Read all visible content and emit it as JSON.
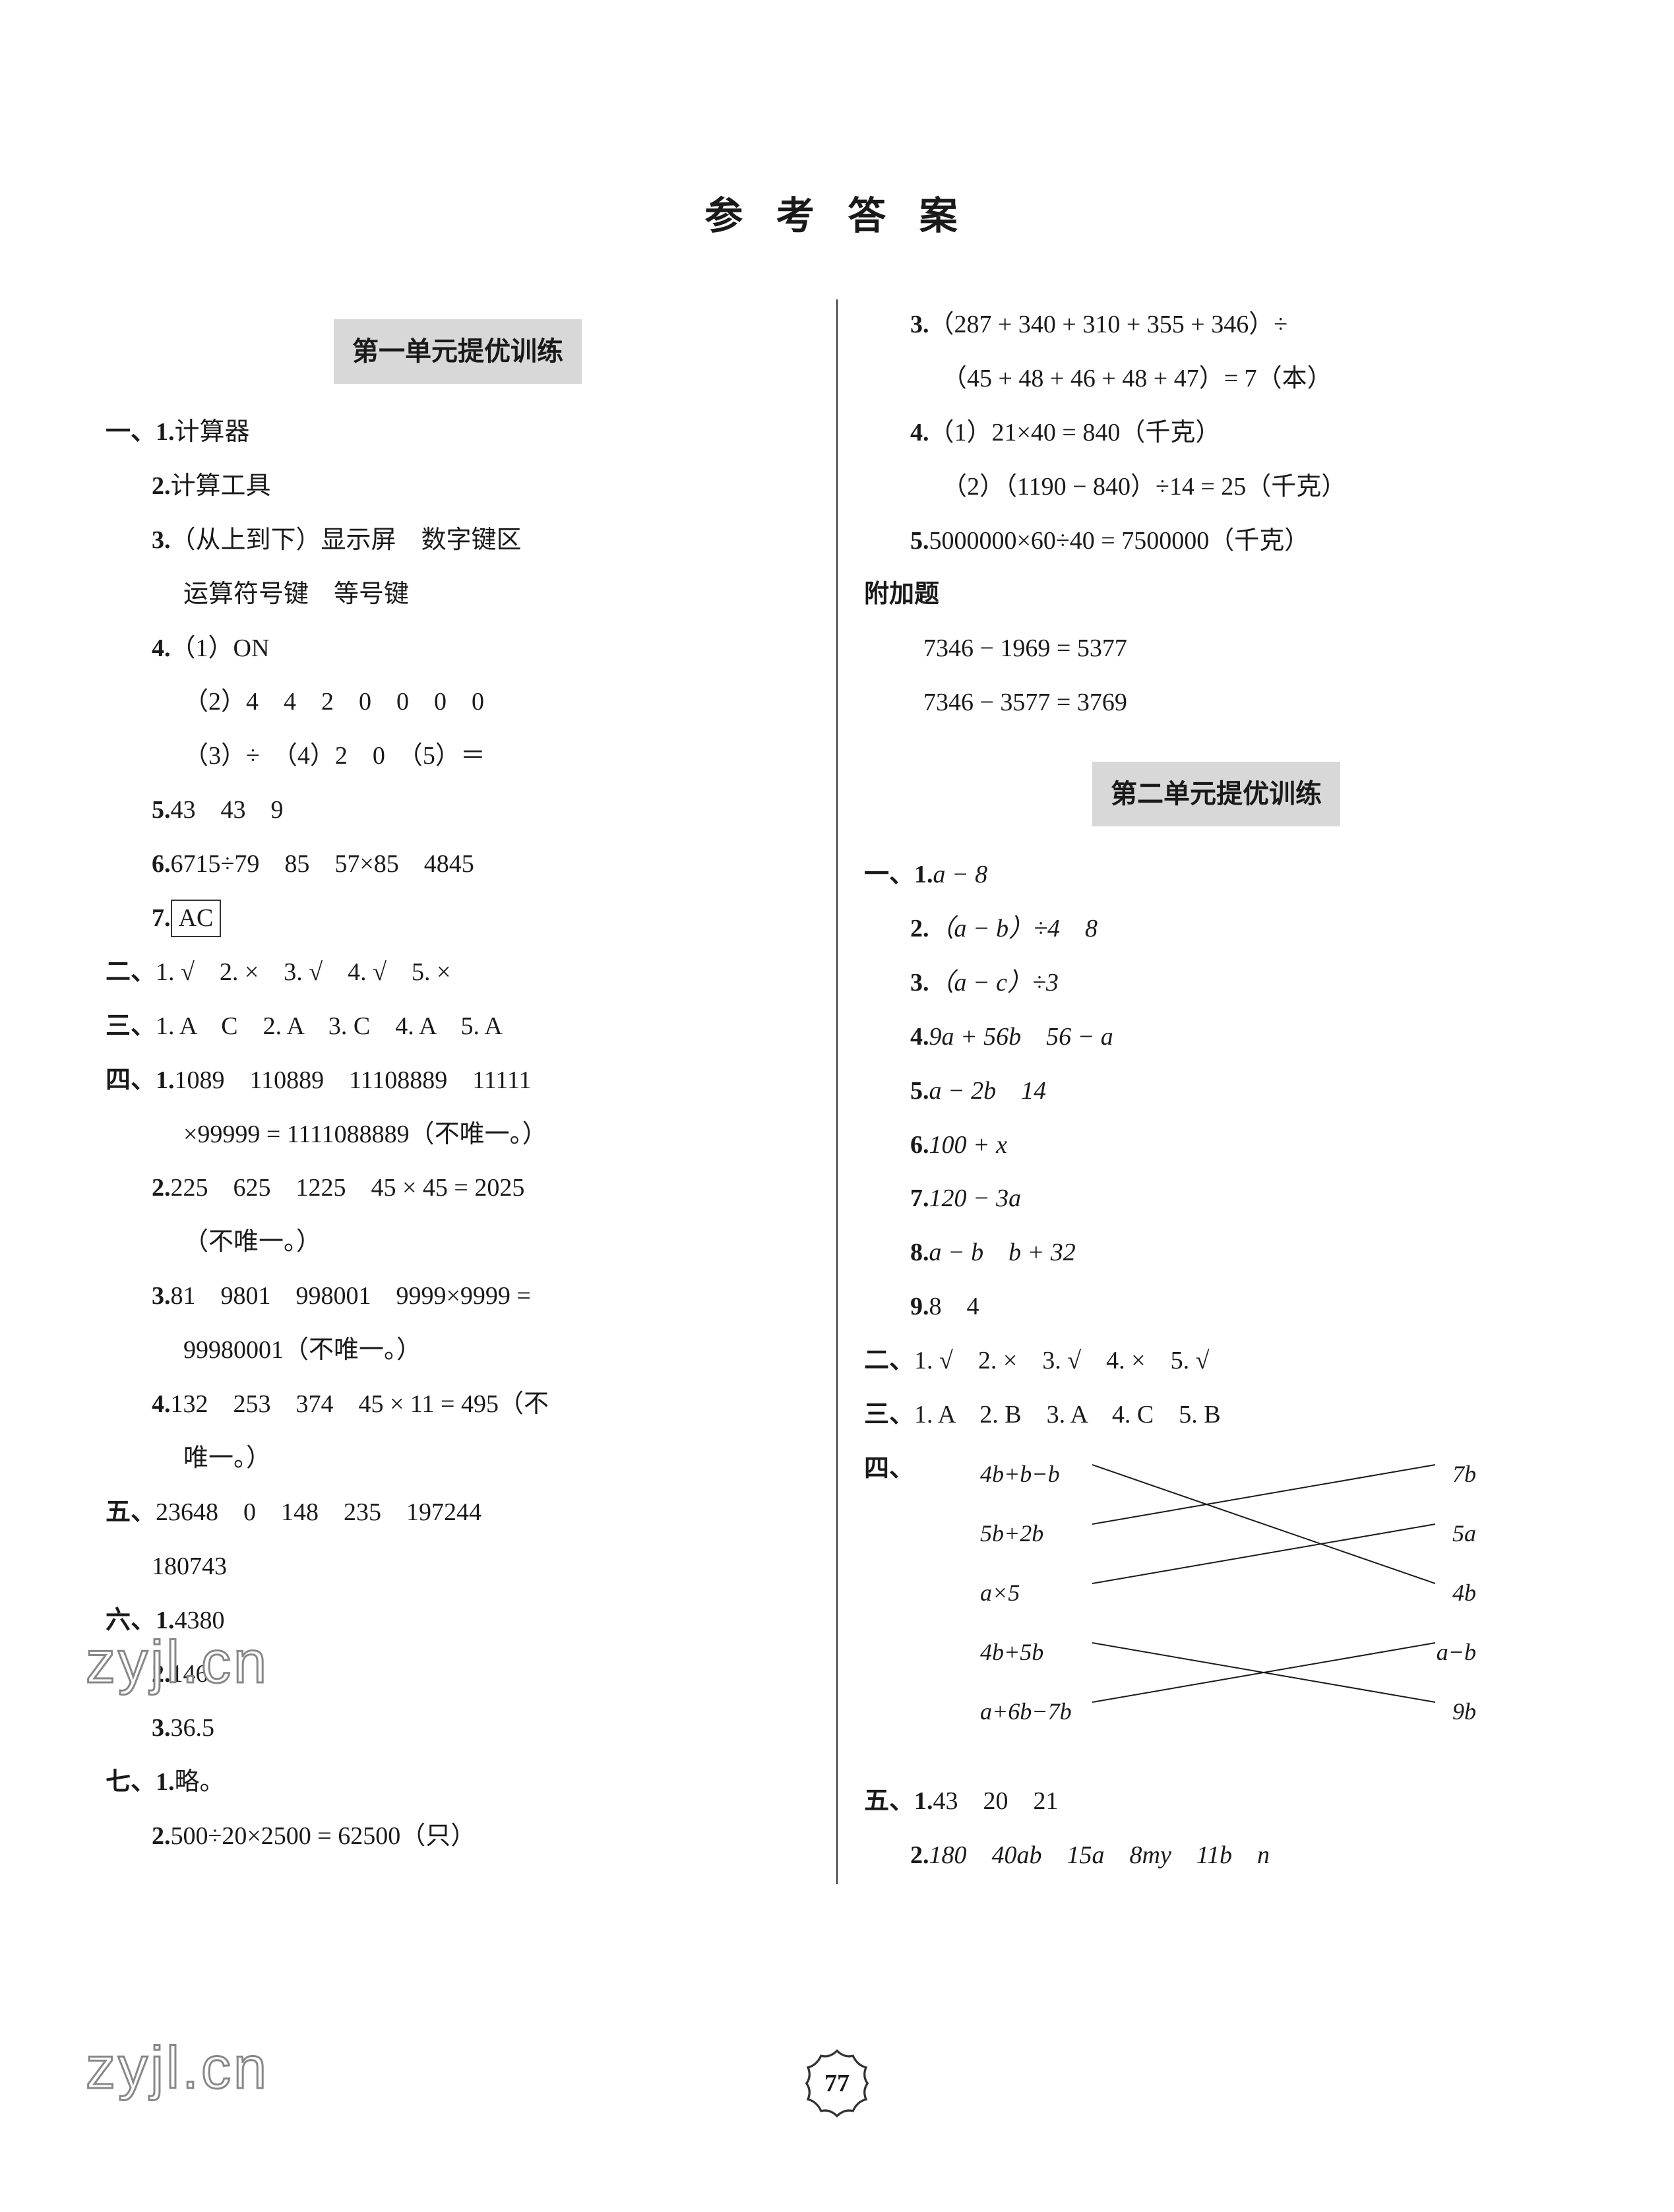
{
  "title": "参 考 答 案",
  "page_number": "77",
  "watermark": "zyjl.cn",
  "colors": {
    "text": "#1a1a1a",
    "section_bg": "#d8d8d8",
    "divider": "#333333",
    "watermark_stroke": "#888888",
    "background": "#ffffff"
  },
  "sections": {
    "unit1": {
      "header": "第一单元提优训练",
      "q1": {
        "label": "一、1.",
        "i1": "计算器",
        "i2_lbl": "2.",
        "i2": "计算工具",
        "i3_lbl": "3.",
        "i3": "（从上到下）显示屏　数字键区",
        "i3b": "运算符号键　等号键",
        "i4_lbl": "4.",
        "i4": "（1）ON",
        "i4b": "（2）4　4　2　0　0　0　0",
        "i4c": "（3）÷　（4）2　0　（5）＝",
        "i5_lbl": "5.",
        "i5": "43　43　9",
        "i6_lbl": "6.",
        "i6": "6715÷79　85　57×85　4845",
        "i7_lbl": "7.",
        "i7": "AC"
      },
      "q2": {
        "label": "二、",
        "text": "1. √　2. ×　3. √　4. √　5. ×"
      },
      "q3": {
        "label": "三、",
        "text": "1. A　C　2. A　3. C　4. A　5. A"
      },
      "q4": {
        "label": "四、1.",
        "i1": "1089　110889　11108889　11111",
        "i1b": "×99999 = 1111088889（不唯一。）",
        "i2_lbl": "2.",
        "i2": "225　625　1225　45 × 45 = 2025",
        "i2b": "（不唯一。）",
        "i3_lbl": "3.",
        "i3": "81　9801　998001　9999×9999 =",
        "i3b": "99980001（不唯一。）",
        "i4_lbl": "4.",
        "i4": "132　253　374　45 × 11 = 495（不",
        "i4b": "唯一。）"
      },
      "q5": {
        "label": "五、",
        "line1": "23648　0　148　235　197244",
        "line2": "180743"
      },
      "q6": {
        "label": "六、1.",
        "i1": "4380",
        "i2_lbl": "2.",
        "i2": "146",
        "i3_lbl": "3.",
        "i3": "36.5"
      },
      "q7": {
        "label": "七、1.",
        "i1": "略。",
        "i2_lbl": "2.",
        "i2": "500÷20×2500 = 62500（只）",
        "i3_lbl": "3.",
        "i3": "（287 + 340 + 310 + 355 + 346）÷",
        "i3b": "（45 + 48 + 46 + 48 + 47）= 7（本）",
        "i4_lbl": "4.",
        "i4": "（1）21×40 = 840（千克）",
        "i4b": "（2）（1190 − 840）÷14 = 25（千克）",
        "i5_lbl": "5.",
        "i5": "5000000×60÷40 = 7500000（千克）"
      },
      "extra": {
        "label": "附加题",
        "l1": "7346 − 1969 = 5377",
        "l2": "7346 − 3577 = 3769"
      }
    },
    "unit2": {
      "header": "第二单元提优训练",
      "q1": {
        "label": "一、1.",
        "i1": "a − 8",
        "i2_lbl": "2.",
        "i2": "（a − b）÷4　8",
        "i3_lbl": "3.",
        "i3": "（a − c）÷3",
        "i4_lbl": "4.",
        "i4": "9a + 56b　56 − a",
        "i5_lbl": "5.",
        "i5": "a − 2b　14",
        "i6_lbl": "6.",
        "i6": "100 + x",
        "i7_lbl": "7.",
        "i7": "120 − 3a",
        "i8_lbl": "8.",
        "i8": "a − b　b + 32",
        "i9_lbl": "9.",
        "i9": "8　4"
      },
      "q2": {
        "label": "二、",
        "text": "1. √　2. ×　3. √　4. ×　5. √"
      },
      "q3": {
        "label": "三、",
        "text": "1. A　2. B　3. A　4. C　5. B"
      },
      "q4": {
        "label": "四、",
        "left": [
          "4b+b−b",
          "5b+2b",
          "a×5",
          "4b+5b",
          "a+6b−7b"
        ],
        "right": [
          "7b",
          "5a",
          "4b",
          "a−b",
          "9b"
        ],
        "edges": [
          [
            0,
            2
          ],
          [
            1,
            0
          ],
          [
            2,
            1
          ],
          [
            3,
            4
          ],
          [
            4,
            3
          ]
        ]
      },
      "q5": {
        "label": "五、1.",
        "i1": "43　20　21",
        "i2_lbl": "2.",
        "i2": "180　40ab　15a　8my　11b　n"
      }
    }
  }
}
